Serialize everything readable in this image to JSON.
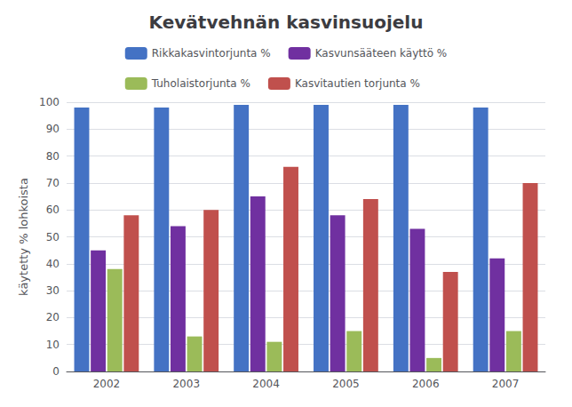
{
  "chart_data": {
    "type": "bar",
    "title": "Kevätvehnän kasvinsuojelu",
    "y_label": "käytetty % lohkoista",
    "categories": [
      "2002",
      "2003",
      "2004",
      "2005",
      "2006",
      "2007"
    ],
    "series": [
      {
        "name": "Rikkakasvintorjunta %",
        "color": "#4472C4",
        "values": [
          98,
          98,
          99,
          99,
          99,
          98
        ]
      },
      {
        "name": "Kasvunsääteen käyttö %",
        "color": "#7030A0",
        "values": [
          45,
          54,
          65,
          58,
          53,
          42
        ]
      },
      {
        "name": "Tuholaistorjunta %",
        "color": "#9BBB59",
        "values": [
          38,
          13,
          11,
          15,
          5,
          15
        ]
      },
      {
        "name": "Kasvitautien torjunta %",
        "color": "#C0504D",
        "values": [
          58,
          60,
          76,
          64,
          37,
          70
        ]
      }
    ],
    "ylim": [
      0,
      100
    ],
    "yticks": [
      0,
      10,
      20,
      30,
      40,
      50,
      60,
      70,
      80,
      90,
      100
    ],
    "grid": true,
    "legend": "top"
  }
}
